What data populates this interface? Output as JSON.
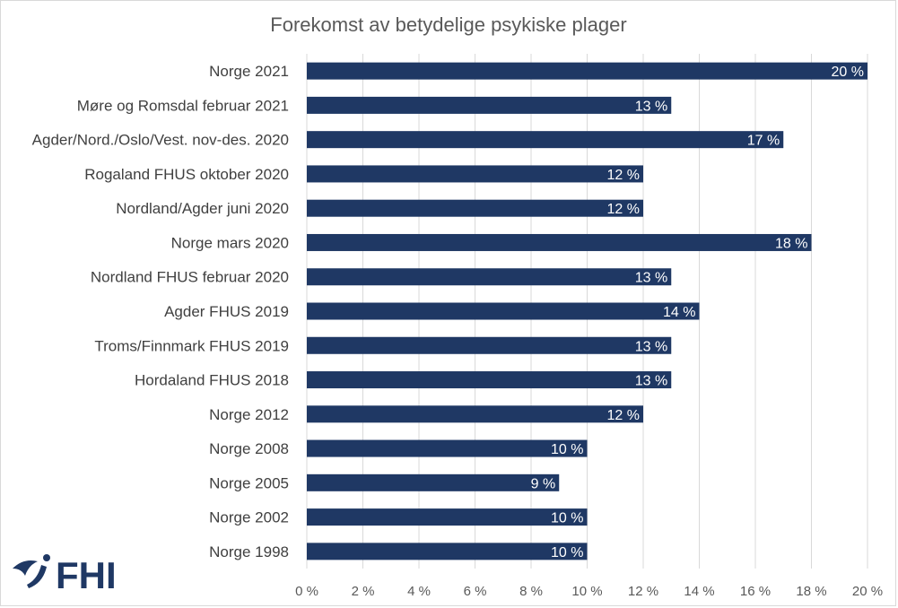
{
  "chart_data": {
    "type": "bar",
    "orientation": "horizontal",
    "title": "Forekomst av betydelige psykiske plager",
    "categories": [
      "Norge 2021",
      "Møre og Romsdal februar 2021",
      "Agder/Nord./Oslo/Vest. nov-des. 2020",
      "Rogaland FHUS oktober 2020",
      "Nordland/Agder juni 2020",
      "Norge mars 2020",
      "Nordland FHUS februar 2020",
      "Agder FHUS 2019",
      "Troms/Finnmark FHUS 2019",
      "Hordaland FHUS 2018",
      "Norge 2012",
      "Norge 2008",
      "Norge 2005",
      "Norge 2002",
      "Norge 1998"
    ],
    "values": [
      20,
      13,
      17,
      12,
      12,
      18,
      13,
      14,
      13,
      13,
      12,
      10,
      9,
      10,
      10
    ],
    "data_labels": [
      "20 %",
      "13 %",
      "17 %",
      "12 %",
      "12 %",
      "18 %",
      "13 %",
      "14 %",
      "13 %",
      "13 %",
      "12 %",
      "10 %",
      "9 %",
      "10 %",
      "10 %"
    ],
    "x_ticks": [
      "0 %",
      "2 %",
      "4 %",
      "6 %",
      "8 %",
      "10 %",
      "12 %",
      "14 %",
      "16 %",
      "18 %",
      "20 %"
    ],
    "xlim": [
      0,
      20
    ],
    "grid": true,
    "bar_color": "#1f3864"
  },
  "logo": {
    "text": "FHI",
    "color": "#1f3864"
  }
}
